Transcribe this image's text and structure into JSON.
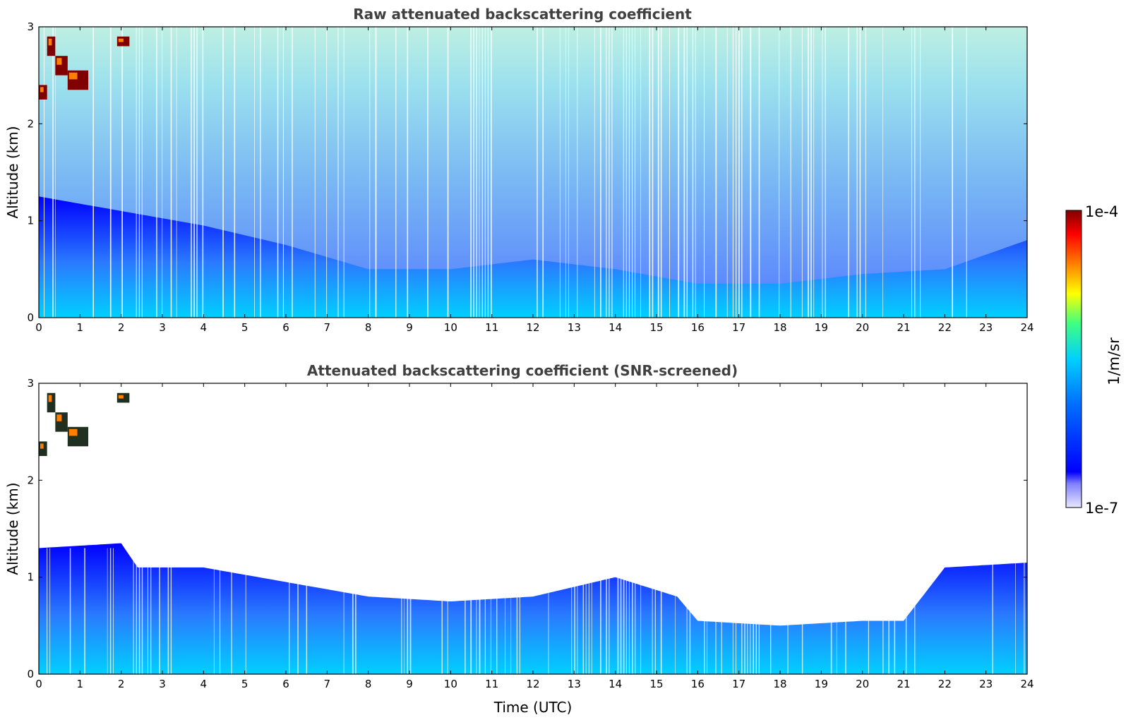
{
  "chart_data": [
    {
      "type": "heatmap",
      "title": "Raw attenuated backscattering coefficient",
      "xlabel": "",
      "ylabel": "Altitude (km)",
      "xlim": [
        0,
        24
      ],
      "ylim": [
        0,
        3
      ],
      "x_ticks": [
        "0",
        "1",
        "2",
        "3",
        "4",
        "5",
        "6",
        "7",
        "8",
        "9",
        "10",
        "11",
        "12",
        "13",
        "14",
        "15",
        "16",
        "17",
        "18",
        "19",
        "20",
        "21",
        "22",
        "23",
        "24"
      ],
      "y_ticks": [
        "0",
        "1",
        "2",
        "3"
      ],
      "profile_layer_top_km": [
        {
          "t": 0,
          "z": 1.25
        },
        {
          "t": 2,
          "z": 1.1
        },
        {
          "t": 4,
          "z": 0.95
        },
        {
          "t": 6,
          "z": 0.75
        },
        {
          "t": 8,
          "z": 0.5
        },
        {
          "t": 10,
          "z": 0.5
        },
        {
          "t": 12,
          "z": 0.6
        },
        {
          "t": 14,
          "z": 0.5
        },
        {
          "t": 16,
          "z": 0.35
        },
        {
          "t": 18,
          "z": 0.35
        },
        {
          "t": 20,
          "z": 0.45
        },
        {
          "t": 22,
          "z": 0.5
        },
        {
          "t": 24,
          "z": 0.8
        }
      ],
      "cloud_patches": [
        {
          "t0": 0.0,
          "t1": 0.2,
          "z0": 2.25,
          "z1": 2.4
        },
        {
          "t0": 0.2,
          "t1": 0.4,
          "z0": 2.7,
          "z1": 2.9
        },
        {
          "t0": 0.4,
          "t1": 0.7,
          "z0": 2.5,
          "z1": 2.7
        },
        {
          "t0": 0.7,
          "t1": 1.2,
          "z0": 2.35,
          "z1": 2.55
        },
        {
          "t0": 1.9,
          "t1": 2.2,
          "z0": 2.8,
          "z1": 2.9
        }
      ],
      "colorbar": {
        "label": "1/m/sr",
        "min_label": "1e-7",
        "max_label": "1e-4",
        "scale": "log"
      }
    },
    {
      "type": "heatmap",
      "title": "Attenuated backscattering coefficient (SNR-screened)",
      "xlabel": "Time (UTC)",
      "ylabel": "Altitude (km)",
      "xlim": [
        0,
        24
      ],
      "ylim": [
        0,
        3
      ],
      "x_ticks": [
        "0",
        "1",
        "2",
        "3",
        "4",
        "5",
        "6",
        "7",
        "8",
        "9",
        "10",
        "11",
        "12",
        "13",
        "14",
        "15",
        "16",
        "17",
        "18",
        "19",
        "20",
        "21",
        "22",
        "23",
        "24"
      ],
      "y_ticks": [
        "0",
        "1",
        "2",
        "3"
      ],
      "profile_layer_top_km": [
        {
          "t": 0,
          "z": 1.3
        },
        {
          "t": 2,
          "z": 1.35
        },
        {
          "t": 2.4,
          "z": 1.1
        },
        {
          "t": 4,
          "z": 1.1
        },
        {
          "t": 6,
          "z": 0.95
        },
        {
          "t": 8,
          "z": 0.8
        },
        {
          "t": 10,
          "z": 0.75
        },
        {
          "t": 12,
          "z": 0.8
        },
        {
          "t": 14,
          "z": 1.0
        },
        {
          "t": 15.5,
          "z": 0.8
        },
        {
          "t": 16,
          "z": 0.55
        },
        {
          "t": 18,
          "z": 0.5
        },
        {
          "t": 20,
          "z": 0.55
        },
        {
          "t": 21,
          "z": 0.55
        },
        {
          "t": 22,
          "z": 1.1
        },
        {
          "t": 24,
          "z": 1.15
        }
      ],
      "cloud_patches": [
        {
          "t0": 0.0,
          "t1": 0.2,
          "z0": 2.25,
          "z1": 2.4
        },
        {
          "t0": 0.2,
          "t1": 0.4,
          "z0": 2.7,
          "z1": 2.9
        },
        {
          "t0": 0.4,
          "t1": 0.7,
          "z0": 2.5,
          "z1": 2.7
        },
        {
          "t0": 0.7,
          "t1": 1.2,
          "z0": 2.35,
          "z1": 2.55
        },
        {
          "t0": 1.9,
          "t1": 2.2,
          "z0": 2.8,
          "z1": 2.9
        }
      ],
      "colorbar": {
        "label": "1/m/sr",
        "min_label": "1e-7",
        "max_label": "1e-4",
        "scale": "log"
      }
    }
  ],
  "colors": {
    "high": "#800000",
    "mid_high": "#ff8000",
    "mid": "#ffff00",
    "mid_low": "#00d0ff",
    "low": "#0000ff",
    "lowest": "#e8e8ff",
    "background": "#ffffff",
    "title": "#404040"
  }
}
